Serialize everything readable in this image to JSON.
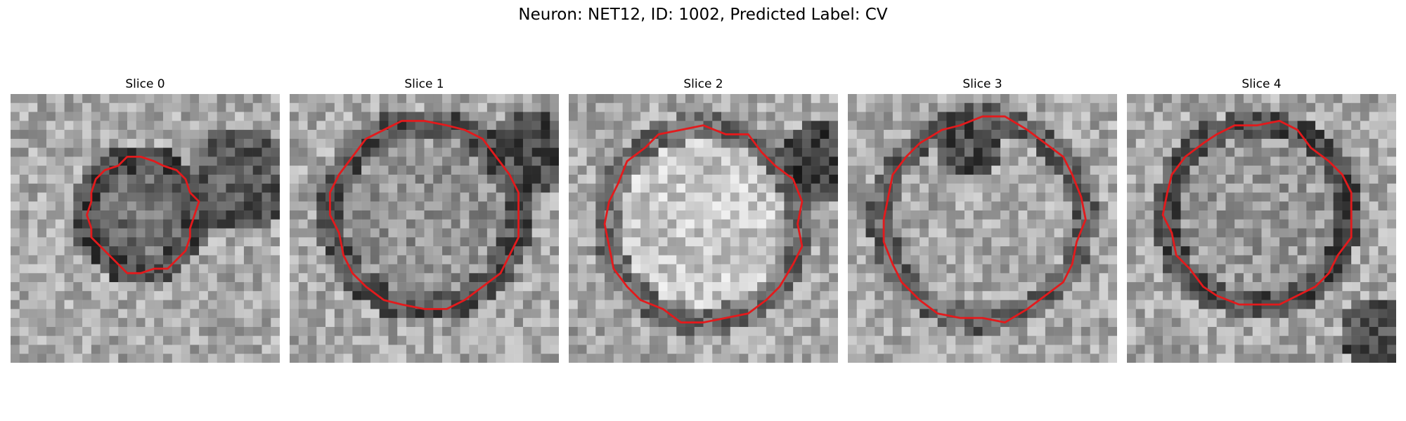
{
  "figure": {
    "title": "Neuron: NET12, ID: 1002, Predicted Label: CV"
  },
  "panels": [
    {
      "title": "Slice 0"
    },
    {
      "title": "Slice 1"
    },
    {
      "title": "Slice 2"
    },
    {
      "title": "Slice 3"
    },
    {
      "title": "Slice 4"
    }
  ],
  "colors": {
    "contour": "#e31a1c",
    "background": "#ffffff"
  }
}
